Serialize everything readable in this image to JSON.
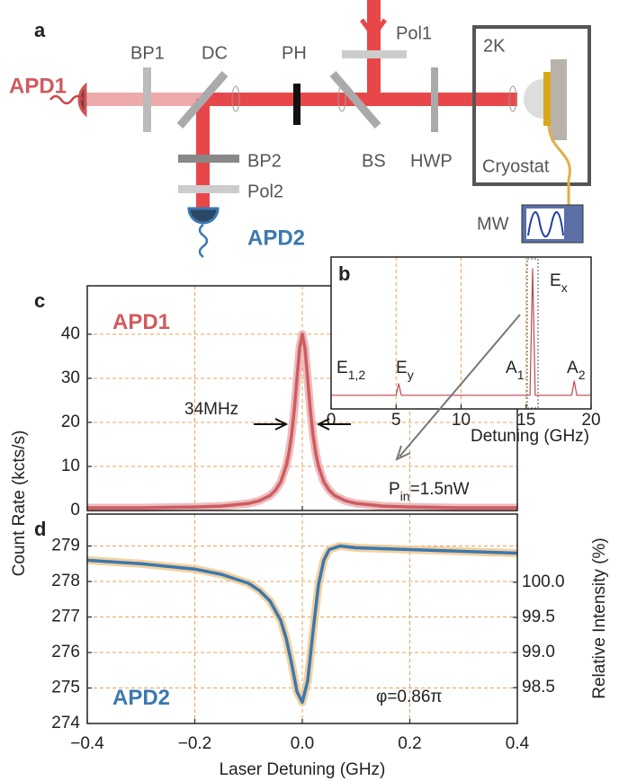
{
  "diagram": {
    "panel": "a",
    "labels": [
      "APD1",
      "BP1",
      "DC",
      "PH",
      "Pol1",
      "2K",
      "BS",
      "HWP",
      "Cryostat",
      "BP2",
      "Pol2",
      "APD2",
      "MW"
    ]
  },
  "chart_data": [
    {
      "type": "line",
      "panel": "c",
      "x": [
        -0.4,
        -0.3,
        -0.2,
        -0.15,
        -0.1,
        -0.08,
        -0.06,
        -0.05,
        -0.04,
        -0.03,
        -0.025,
        -0.02,
        -0.015,
        -0.01,
        -0.005,
        0,
        0.005,
        0.01,
        0.015,
        0.02,
        0.025,
        0.03,
        0.04,
        0.05,
        0.06,
        0.08,
        0.1,
        0.15,
        0.2,
        0.3,
        0.4
      ],
      "series": [
        {
          "color": "#cd5c60",
          "values": [
            0.6,
            0.6,
            0.8,
            1.0,
            1.6,
            2.2,
            3.4,
            4.6,
            6.5,
            10.1,
            13.0,
            17.1,
            22.7,
            29.8,
            36.9,
            40.0,
            36.9,
            29.8,
            22.7,
            17.1,
            13.0,
            10.1,
            6.5,
            4.6,
            3.4,
            2.2,
            1.6,
            1.0,
            0.8,
            0.6,
            0.6
          ]
        }
      ],
      "xlim": [
        -0.4,
        0.4
      ],
      "xticks": [
        -0.4,
        -0.2,
        0,
        0.2,
        0.4
      ],
      "ylim": [
        0,
        51
      ],
      "yticks": [
        0,
        10,
        20,
        30,
        40
      ],
      "grid": true,
      "ylabel": "Count Rate (kcts/s)",
      "annotations": [
        {
          "text": "APD1"
        },
        {
          "text": "34MHz"
        },
        {
          "text": "P",
          "sub": "in",
          "rest": "=1.5nW"
        }
      ]
    },
    {
      "type": "line",
      "panel": "b",
      "x": [
        0,
        5,
        5.2,
        5.4,
        15.3,
        15.5,
        15.7,
        18.5,
        18.7,
        18.9,
        20
      ],
      "series": [
        {
          "color": "#c0474b",
          "values": [
            1,
            1,
            5,
            1,
            1,
            45,
            1,
            1,
            6,
            1,
            1
          ]
        }
      ],
      "xlim": [
        0,
        20
      ],
      "xticks": [
        0,
        5,
        10,
        15,
        20
      ],
      "ylim": [
        0,
        50
      ],
      "grid": true,
      "xlabel": "Detuning (GHz)",
      "annotations": [
        {
          "text": "E",
          "sub": "x"
        },
        {
          "text": "E",
          "sub": "1,2"
        },
        {
          "text": "E",
          "sub": "y"
        },
        {
          "text": "A",
          "sub": "1"
        },
        {
          "text": "A",
          "sub": "2"
        }
      ]
    },
    {
      "type": "line",
      "panel": "d",
      "x": [
        -0.4,
        -0.3,
        -0.2,
        -0.15,
        -0.1,
        -0.08,
        -0.06,
        -0.04,
        -0.03,
        -0.02,
        -0.01,
        0,
        0.01,
        0.02,
        0.03,
        0.04,
        0.05,
        0.07,
        0.1,
        0.2,
        0.3,
        0.4
      ],
      "series": [
        {
          "color": "#3b78b0",
          "values": [
            278.6,
            278.5,
            278.35,
            278.2,
            277.95,
            277.75,
            277.45,
            276.9,
            276.4,
            275.7,
            274.9,
            274.6,
            275.2,
            276.6,
            277.9,
            278.6,
            278.9,
            279.0,
            278.95,
            278.9,
            278.85,
            278.8
          ]
        }
      ],
      "xlim": [
        -0.4,
        0.4
      ],
      "xticks": [
        {
          "value": -0.4,
          "label": "−0.4"
        },
        {
          "value": -0.2,
          "label": "−0.2"
        },
        {
          "value": 0,
          "label": "0.0"
        },
        0.2,
        0.4
      ],
      "ylim": [
        274,
        279.9
      ],
      "yticks": [
        274,
        275,
        276,
        277,
        278,
        279
      ],
      "y2lim": [
        97.99,
        100.97
      ],
      "y2ticks": [
        98.5,
        {
          "value": 99,
          "label": "99.0"
        },
        99.5,
        {
          "value": 100,
          "label": "100.0"
        }
      ],
      "grid": true,
      "xlabel": "Laser Detuning (GHz)",
      "y2label": "Relative Intensity (%)",
      "annotations": [
        {
          "text": "APD2"
        },
        {
          "text": "φ=0.86π"
        }
      ]
    }
  ]
}
